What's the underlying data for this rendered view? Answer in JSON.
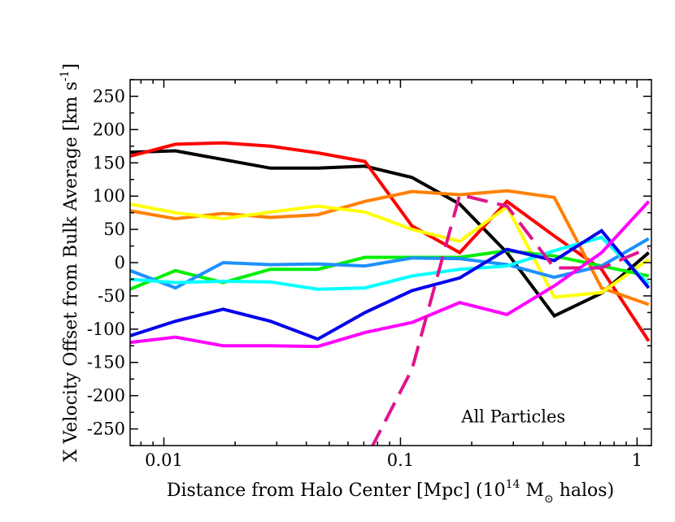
{
  "chart_data": {
    "type": "line",
    "xscale": "log",
    "xlim": [
      0.0072,
      1.15
    ],
    "ylim": [
      -275,
      275
    ],
    "x_ticks": [
      0.01,
      0.1,
      1
    ],
    "x_tick_labels": [
      "0.01",
      "0.1",
      "1"
    ],
    "y_ticks": [
      -250,
      -200,
      -150,
      -100,
      -50,
      0,
      50,
      100,
      150,
      200,
      250
    ],
    "y_tick_labels": [
      "-250",
      "-200",
      "-150",
      "-100",
      "-50",
      "0",
      "50",
      "100",
      "150",
      "200",
      "250"
    ],
    "xlabel": {
      "prefix": "Distance from Halo Center [Mpc] (10",
      "exp": "14",
      "mass": " M",
      "sub": "⊙",
      "suffix": " halos)"
    },
    "ylabel": {
      "main": "X Velocity Offset from Bulk Average [km s",
      "exp": "-1",
      "close": "]"
    },
    "annotations": [
      {
        "text": "All Particles",
        "x": 0.3,
        "y": -240
      }
    ],
    "grid": false,
    "series": [
      {
        "color": "#000000",
        "dash": "solid",
        "x": [
          0.0072,
          0.0112,
          0.0178,
          0.0282,
          0.0447,
          0.0708,
          0.112,
          0.178,
          0.282,
          0.447,
          0.708,
          1.12
        ],
        "values": [
          166,
          168,
          155,
          142,
          142,
          145,
          128,
          88,
          15,
          -80,
          -46,
          15
        ]
      },
      {
        "color": "#ff0000",
        "dash": "solid",
        "x": [
          0.0072,
          0.0112,
          0.0178,
          0.0282,
          0.0447,
          0.0708,
          0.112,
          0.178,
          0.282,
          0.447,
          0.708,
          1.12
        ],
        "values": [
          160,
          178,
          180,
          175,
          165,
          152,
          55,
          15,
          92,
          40,
          -10,
          -118
        ]
      },
      {
        "color": "#ff8000",
        "dash": "solid",
        "x": [
          0.0072,
          0.0112,
          0.0178,
          0.0282,
          0.0447,
          0.0708,
          0.112,
          0.178,
          0.282,
          0.447,
          0.708,
          1.12
        ],
        "values": [
          78,
          66,
          74,
          68,
          72,
          92,
          107,
          102,
          108,
          98,
          -38,
          -63
        ]
      },
      {
        "color": "#ffff00",
        "dash": "solid",
        "x": [
          0.0072,
          0.0112,
          0.0178,
          0.0282,
          0.0447,
          0.0708,
          0.112,
          0.178,
          0.282,
          0.447,
          0.708,
          1.12
        ],
        "values": [
          88,
          75,
          66,
          76,
          85,
          76,
          50,
          32,
          84,
          -52,
          -45,
          5
        ]
      },
      {
        "color": "#00ee00",
        "dash": "solid",
        "x": [
          0.0072,
          0.0112,
          0.0178,
          0.0282,
          0.0447,
          0.0708,
          0.112,
          0.178,
          0.282,
          0.447,
          0.708,
          1.12
        ],
        "values": [
          -40,
          -12,
          -30,
          -10,
          -10,
          8,
          8,
          8,
          18,
          10,
          -5,
          -20
        ]
      },
      {
        "color": "#1e90ff",
        "dash": "solid",
        "x": [
          0.0072,
          0.0112,
          0.0178,
          0.0282,
          0.0447,
          0.0708,
          0.112,
          0.178,
          0.282,
          0.447,
          0.708,
          1.12
        ],
        "values": [
          -12,
          -38,
          0,
          -3,
          -2,
          -5,
          7,
          6,
          -3,
          -22,
          -5,
          36
        ]
      },
      {
        "color": "#00ffff",
        "dash": "solid",
        "x": [
          0.0072,
          0.0112,
          0.0178,
          0.0282,
          0.0447,
          0.0708,
          0.112,
          0.178,
          0.282,
          0.447,
          0.708,
          1.12
        ],
        "values": [
          -25,
          -30,
          -28,
          -29,
          -40,
          -38,
          -20,
          -10,
          -5,
          18,
          38,
          -32
        ]
      },
      {
        "color": "#0000ee",
        "dash": "solid",
        "x": [
          0.0072,
          0.0112,
          0.0178,
          0.0282,
          0.0447,
          0.0708,
          0.112,
          0.178,
          0.282,
          0.447,
          0.708,
          1.12
        ],
        "values": [
          -110,
          -88,
          -70,
          -88,
          -115,
          -75,
          -42,
          -23,
          20,
          3,
          48,
          -38
        ]
      },
      {
        "color": "#ff00ff",
        "dash": "solid",
        "x": [
          0.0072,
          0.0112,
          0.0178,
          0.0282,
          0.0447,
          0.0708,
          0.112,
          0.178,
          0.282,
          0.447,
          0.708,
          1.12
        ],
        "values": [
          -120,
          -112,
          -125,
          -125,
          -126,
          -105,
          -90,
          -60,
          -78,
          -35,
          15,
          92
        ]
      },
      {
        "color": "#e0148c",
        "dash": "dashed",
        "x": [
          0.075,
          0.112,
          0.178,
          0.282,
          0.447,
          0.708,
          1.12
        ],
        "values": [
          -280,
          -160,
          102,
          85,
          -8,
          -8,
          22
        ]
      }
    ]
  }
}
